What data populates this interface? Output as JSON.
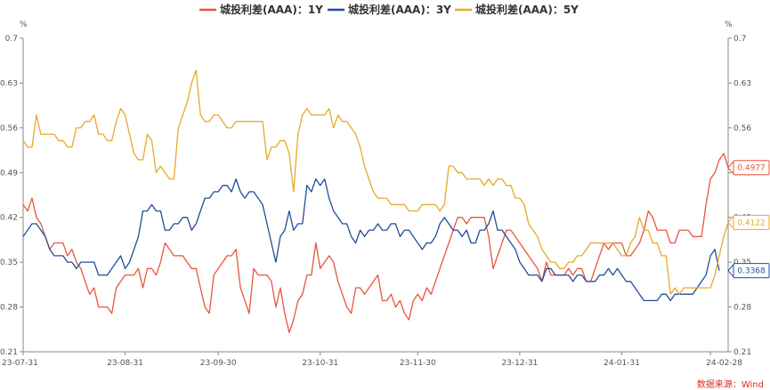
{
  "chart_data": {
    "type": "line",
    "title": "",
    "y_unit_left": "%",
    "y_unit_right": "%",
    "ylim": [
      0.21,
      0.7
    ],
    "y_ticks": [
      "0.7",
      "0.63",
      "0.56",
      "0.49",
      "0.42",
      "0.35",
      "0.28",
      "0.21"
    ],
    "x_ticks": [
      "23-07-31",
      "23-08-31",
      "23-09-30",
      "23-10-31",
      "23-11-30",
      "23-12-31",
      "24-01-31",
      "24-02-28"
    ],
    "x_tick_index": [
      0,
      23,
      44,
      67,
      89,
      112,
      135,
      155
    ],
    "grid": false,
    "legend_position": "top-center",
    "source": "数据来源：Wind",
    "series": [
      {
        "name": "城投利差(AAA)：1Y",
        "color": "#e8553e",
        "last_label": "0.4977",
        "values": [
          0.44,
          0.43,
          0.45,
          0.42,
          0.41,
          0.39,
          0.37,
          0.38,
          0.38,
          0.38,
          0.36,
          0.37,
          0.35,
          0.34,
          0.32,
          0.3,
          0.31,
          0.28,
          0.28,
          0.28,
          0.27,
          0.31,
          0.32,
          0.33,
          0.33,
          0.33,
          0.34,
          0.31,
          0.34,
          0.34,
          0.33,
          0.35,
          0.38,
          0.37,
          0.36,
          0.36,
          0.36,
          0.35,
          0.34,
          0.34,
          0.31,
          0.28,
          0.27,
          0.33,
          0.34,
          0.35,
          0.36,
          0.36,
          0.37,
          0.31,
          0.29,
          0.27,
          0.34,
          0.33,
          0.33,
          0.33,
          0.32,
          0.28,
          0.31,
          0.27,
          0.24,
          0.26,
          0.29,
          0.3,
          0.33,
          0.33,
          0.38,
          0.34,
          0.35,
          0.36,
          0.35,
          0.32,
          0.3,
          0.28,
          0.27,
          0.31,
          0.31,
          0.3,
          0.31,
          0.32,
          0.33,
          0.29,
          0.29,
          0.3,
          0.28,
          0.29,
          0.27,
          0.26,
          0.29,
          0.3,
          0.29,
          0.31,
          0.3,
          0.32,
          0.34,
          0.36,
          0.38,
          0.4,
          0.42,
          0.42,
          0.41,
          0.42,
          0.42,
          0.42,
          0.42,
          0.39,
          0.34,
          0.36,
          0.38,
          0.4,
          0.4,
          0.39,
          0.38,
          0.37,
          0.36,
          0.35,
          0.34,
          0.32,
          0.35,
          0.33,
          0.33,
          0.33,
          0.33,
          0.34,
          0.33,
          0.34,
          0.34,
          0.32,
          0.32,
          0.34,
          0.36,
          0.38,
          0.37,
          0.38,
          0.38,
          0.38,
          0.36,
          0.36,
          0.37,
          0.38,
          0.4,
          0.43,
          0.42,
          0.4,
          0.4,
          0.4,
          0.38,
          0.38,
          0.4,
          0.4,
          0.4,
          0.39,
          0.39,
          0.39,
          0.44,
          0.48,
          0.49,
          0.51,
          0.52,
          0.4977
        ]
      },
      {
        "name": "城投利差(AAA)：3Y",
        "color": "#1f4e9b",
        "last_label": "0.3368",
        "values": [
          0.39,
          0.4,
          0.41,
          0.41,
          0.4,
          0.39,
          0.37,
          0.36,
          0.36,
          0.36,
          0.35,
          0.35,
          0.34,
          0.35,
          0.35,
          0.35,
          0.35,
          0.33,
          0.33,
          0.33,
          0.34,
          0.35,
          0.36,
          0.34,
          0.35,
          0.37,
          0.39,
          0.43,
          0.43,
          0.44,
          0.43,
          0.43,
          0.4,
          0.4,
          0.41,
          0.41,
          0.42,
          0.42,
          0.4,
          0.41,
          0.43,
          0.45,
          0.45,
          0.46,
          0.46,
          0.47,
          0.47,
          0.46,
          0.48,
          0.46,
          0.45,
          0.46,
          0.46,
          0.45,
          0.44,
          0.41,
          0.38,
          0.35,
          0.39,
          0.4,
          0.43,
          0.4,
          0.41,
          0.41,
          0.47,
          0.46,
          0.48,
          0.47,
          0.48,
          0.45,
          0.43,
          0.42,
          0.41,
          0.41,
          0.39,
          0.38,
          0.4,
          0.39,
          0.4,
          0.4,
          0.41,
          0.4,
          0.4,
          0.41,
          0.41,
          0.39,
          0.4,
          0.4,
          0.39,
          0.38,
          0.37,
          0.38,
          0.38,
          0.39,
          0.41,
          0.42,
          0.41,
          0.4,
          0.4,
          0.39,
          0.4,
          0.38,
          0.38,
          0.4,
          0.4,
          0.41,
          0.43,
          0.4,
          0.4,
          0.39,
          0.38,
          0.37,
          0.35,
          0.34,
          0.33,
          0.33,
          0.33,
          0.32,
          0.34,
          0.34,
          0.33,
          0.33,
          0.33,
          0.33,
          0.32,
          0.33,
          0.33,
          0.32,
          0.32,
          0.32,
          0.33,
          0.33,
          0.34,
          0.33,
          0.34,
          0.33,
          0.32,
          0.32,
          0.31,
          0.3,
          0.29,
          0.29,
          0.29,
          0.29,
          0.3,
          0.3,
          0.29,
          0.3,
          0.3,
          0.3,
          0.3,
          0.3,
          0.31,
          0.32,
          0.33,
          0.36,
          0.37,
          0.3368
        ]
      },
      {
        "name": "城投利差(AAA)：5Y",
        "color": "#e7a928",
        "last_label": "0.4122",
        "values": [
          0.54,
          0.53,
          0.53,
          0.58,
          0.55,
          0.55,
          0.55,
          0.55,
          0.54,
          0.54,
          0.53,
          0.53,
          0.56,
          0.56,
          0.57,
          0.57,
          0.58,
          0.55,
          0.55,
          0.54,
          0.54,
          0.57,
          0.59,
          0.58,
          0.55,
          0.52,
          0.51,
          0.51,
          0.55,
          0.54,
          0.49,
          0.5,
          0.49,
          0.48,
          0.48,
          0.56,
          0.58,
          0.6,
          0.63,
          0.65,
          0.58,
          0.57,
          0.57,
          0.58,
          0.58,
          0.57,
          0.56,
          0.56,
          0.57,
          0.57,
          0.57,
          0.57,
          0.57,
          0.57,
          0.57,
          0.51,
          0.53,
          0.53,
          0.54,
          0.54,
          0.52,
          0.46,
          0.55,
          0.58,
          0.59,
          0.58,
          0.58,
          0.58,
          0.58,
          0.59,
          0.56,
          0.58,
          0.57,
          0.57,
          0.56,
          0.55,
          0.53,
          0.5,
          0.48,
          0.46,
          0.45,
          0.45,
          0.45,
          0.44,
          0.44,
          0.44,
          0.44,
          0.43,
          0.43,
          0.43,
          0.44,
          0.44,
          0.44,
          0.44,
          0.43,
          0.44,
          0.5,
          0.5,
          0.49,
          0.49,
          0.48,
          0.48,
          0.48,
          0.48,
          0.47,
          0.48,
          0.47,
          0.48,
          0.48,
          0.47,
          0.47,
          0.45,
          0.45,
          0.44,
          0.41,
          0.4,
          0.39,
          0.37,
          0.36,
          0.35,
          0.35,
          0.34,
          0.34,
          0.35,
          0.35,
          0.36,
          0.36,
          0.37,
          0.38,
          0.38,
          0.38,
          0.38,
          0.38,
          0.38,
          0.37,
          0.36,
          0.36,
          0.38,
          0.39,
          0.42,
          0.4,
          0.4,
          0.38,
          0.38,
          0.36,
          0.36,
          0.3,
          0.31,
          0.3,
          0.31,
          0.31,
          0.31,
          0.31,
          0.31,
          0.31,
          0.31,
          0.33,
          0.36,
          0.39,
          0.4122
        ]
      }
    ]
  }
}
